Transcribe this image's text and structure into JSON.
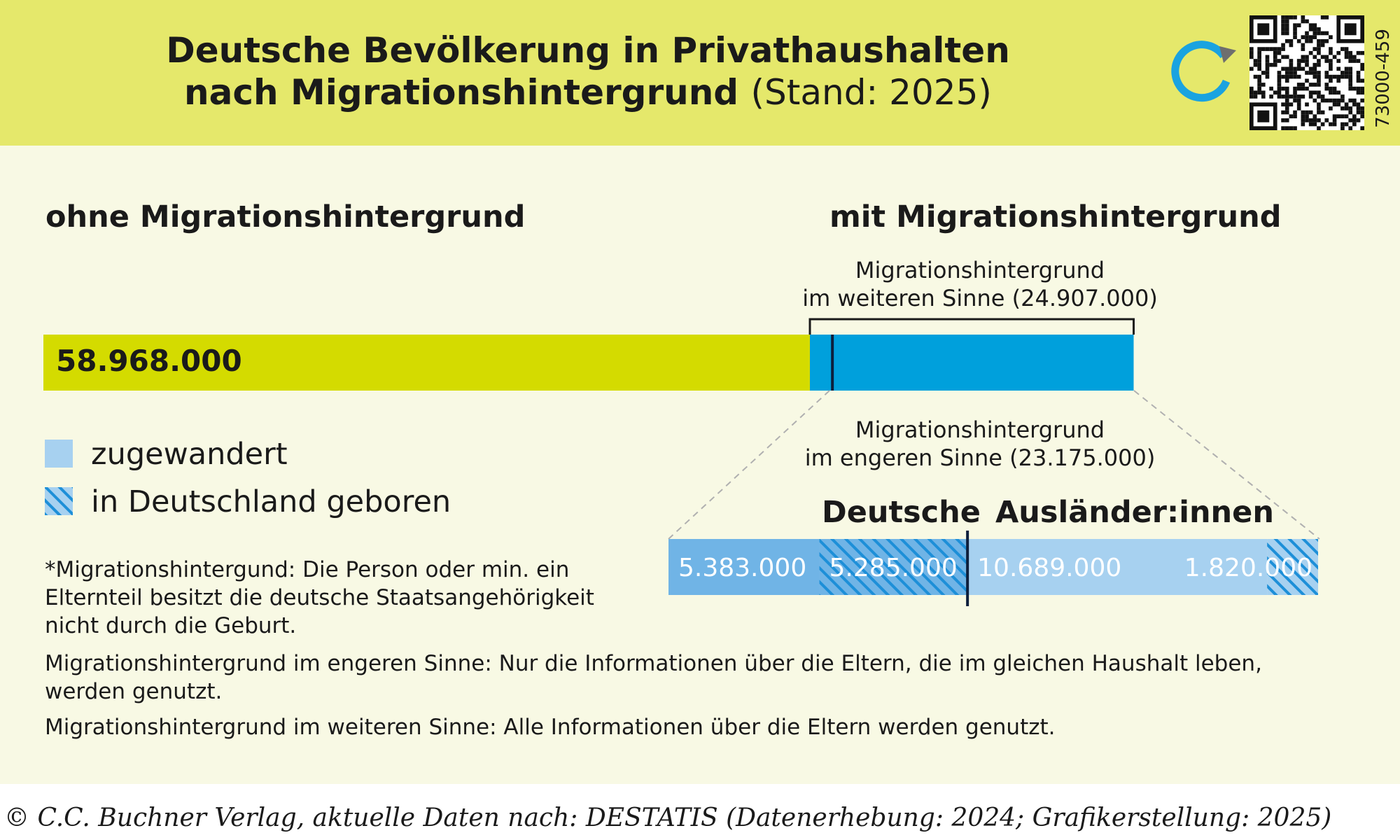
{
  "header": {
    "title_line1": "Deutsche Bevölkerung in Privathaushalten",
    "title_line2_bold": "nach Migrationshintergrund",
    "title_line2_normal": "(Stand: 2025)",
    "code": "73000-459",
    "icons": [
      "refresh-icon",
      "qr-code-icon"
    ]
  },
  "colors": {
    "header_bg": "#e5e86b",
    "panel_bg": "#f8f9e4",
    "ohne": "#d4db00",
    "mit": "#00a0dc",
    "deutsche": "#70b4e6",
    "auslaender": "#a7d1f0"
  },
  "chart_data": {
    "type": "bar",
    "main_bar": {
      "categories": [
        "ohne Migrationshintergrund",
        "mit Migrationshintergrund"
      ],
      "values": [
        58968000,
        24907000
      ],
      "value_labels": [
        "58.968.000",
        ""
      ],
      "narrow_marker_value": 1732000
    },
    "bracket_label": "Migrationshintergrund\nim weiteren Sinne (24.907.000)",
    "detail_label": "Migrationshintergrund\nim engeren Sinne (23.175.000)",
    "detail_bar": {
      "groups": [
        "Deutsche",
        "Ausländer:innen"
      ],
      "segments": [
        {
          "group": "Deutsche",
          "type": "zugewandert",
          "value": 5383000,
          "label": "5.383.000"
        },
        {
          "group": "Deutsche",
          "type": "in Deutschland geboren",
          "value": 5285000,
          "label": "5.285.000"
        },
        {
          "group": "Ausländer:innen",
          "type": "zugewandert",
          "value": 10689000,
          "label": "10.689.000"
        },
        {
          "group": "Ausländer:innen",
          "type": "in Deutschland geboren",
          "value": 1820000,
          "label": "1.820.000"
        }
      ]
    },
    "legend": [
      {
        "label": "zugewandert",
        "pattern": "solid"
      },
      {
        "label": "in Deutschland geboren",
        "pattern": "hatched"
      }
    ]
  },
  "footnotes": [
    "*Migrationshintergund: Die Person oder min. ein Elternteil besitzt die deutsche Staatsangehörigkeit nicht durch die Geburt.",
    "Migrationshintergrund im engeren Sinne: Nur die Informationen über die Eltern, die im gleichen Haushalt leben, werden genutzt.",
    "Migrationshintergrund im weiteren Sinne: Alle Informationen über die Eltern werden genutzt."
  ],
  "source": "© C.C. Buchner Verlag, aktuelle Daten nach: DESTATIS (Datenerhebung: 2024; Grafikerstellung: 2025)"
}
